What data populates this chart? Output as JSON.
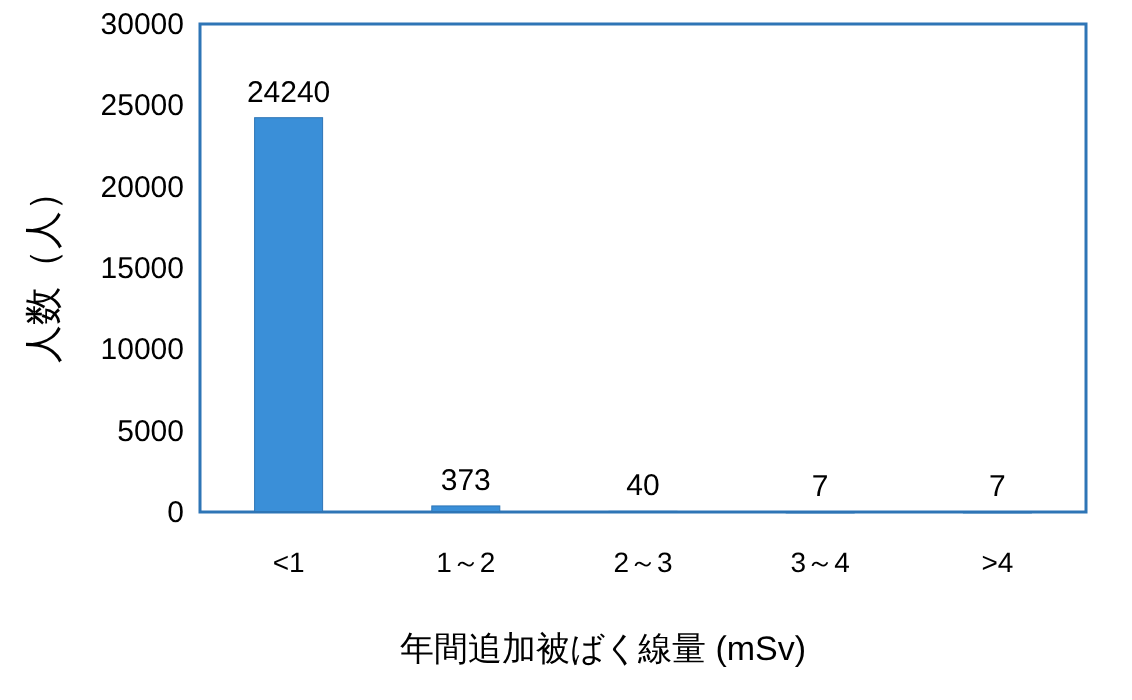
{
  "chart_data": {
    "type": "bar",
    "xlabel": "年間追加被ばく線量 (mSv)",
    "ylabel": "人数（人）",
    "categories": [
      "<1",
      "1～2",
      "2～3",
      "3～4",
      ">4"
    ],
    "values": [
      24240,
      373,
      40,
      7,
      7
    ],
    "color": "#3a8fd8",
    "ylim": [
      0,
      30000
    ],
    "yticks": [
      0,
      5000,
      10000,
      15000,
      20000,
      25000,
      30000
    ],
    "data_labels": true
  }
}
